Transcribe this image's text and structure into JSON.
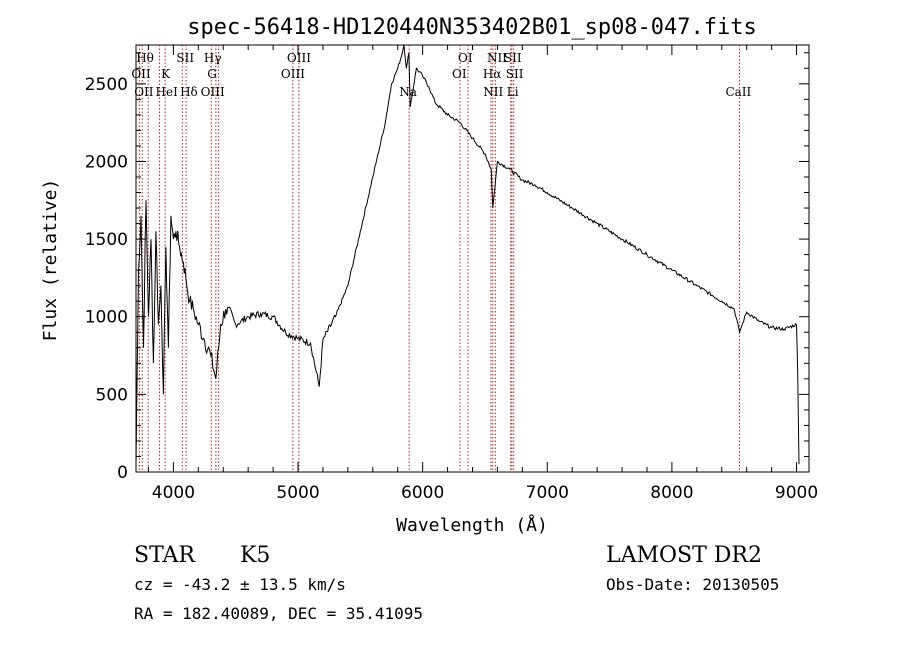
{
  "chart_data": {
    "type": "line",
    "title": "spec-56418-HD120440N353402B01_sp08-047.fits",
    "xlabel": "Wavelength (Å)",
    "ylabel": "Flux (relative)",
    "xlim": [
      3700,
      9100
    ],
    "ylim": [
      0,
      2750
    ],
    "xticks": [
      4000,
      5000,
      6000,
      7000,
      8000,
      9000
    ],
    "yticks": [
      0,
      500,
      1000,
      1500,
      2000,
      2500
    ],
    "grid": false,
    "series": [
      {
        "x": [
          3700,
          3720,
          3740,
          3760,
          3780,
          3800,
          3820,
          3840,
          3860,
          3880,
          3900,
          3920,
          3940,
          3960,
          3980,
          4000,
          4020,
          4050,
          4080,
          4100,
          4130,
          4160,
          4200,
          4250,
          4300,
          4340,
          4380,
          4420,
          4500,
          4600,
          4700,
          4800,
          4900,
          5000,
          5100,
          5170,
          5200,
          5300,
          5400,
          5500,
          5600,
          5700,
          5750,
          5800,
          5830,
          5850,
          5870,
          5890,
          5900,
          5950,
          6000,
          6050,
          6100,
          6200,
          6300,
          6400,
          6500,
          6550,
          6563,
          6600,
          6700,
          6800,
          6900,
          7000,
          7200,
          7400,
          7600,
          7800,
          8000,
          8200,
          8400,
          8500,
          8542,
          8600,
          8700,
          8800,
          8900,
          9000,
          9010,
          9020
        ],
        "y": [
          50,
          1300,
          1650,
          800,
          1750,
          1000,
          1500,
          700,
          1550,
          950,
          1200,
          500,
          1450,
          800,
          1650,
          1500,
          1550,
          1450,
          1350,
          1250,
          1100,
          1050,
          950,
          850,
          750,
          600,
          950,
          1050,
          950,
          1000,
          1020,
          1000,
          900,
          860,
          830,
          550,
          850,
          1000,
          1200,
          1550,
          1900,
          2250,
          2500,
          2600,
          2680,
          2750,
          2600,
          2700,
          2350,
          2600,
          2550,
          2480,
          2380,
          2300,
          2250,
          2150,
          2050,
          1950,
          1700,
          2000,
          1950,
          1880,
          1850,
          1800,
          1700,
          1600,
          1500,
          1400,
          1300,
          1200,
          1100,
          1050,
          900,
          1030,
          970,
          930,
          920,
          950,
          600,
          50
        ]
      }
    ],
    "lines": [
      {
        "x": 3727,
        "labels": [
          "OII"
        ]
      },
      {
        "x": 3750,
        "labels": [
          "OII"
        ]
      },
      {
        "x": 3798,
        "labels": [
          "Hθ"
        ]
      },
      {
        "x": 3889,
        "labels": [
          "HeI"
        ]
      },
      {
        "x": 3934,
        "labels": [
          "K"
        ]
      },
      {
        "x": 4072,
        "labels": [
          "SII"
        ]
      },
      {
        "x": 4102,
        "labels": [
          "Hδ"
        ]
      },
      {
        "x": 4304,
        "labels": [
          "G"
        ]
      },
      {
        "x": 4341,
        "labels": [
          "Hγ"
        ]
      },
      {
        "x": 4363,
        "labels": [
          "OIII"
        ]
      },
      {
        "x": 4959,
        "labels": [
          "OIII"
        ]
      },
      {
        "x": 5007,
        "labels": [
          "OIII"
        ]
      },
      {
        "x": 5892,
        "labels": [
          "Na"
        ]
      },
      {
        "x": 6300,
        "labels": [
          "OI"
        ]
      },
      {
        "x": 6364,
        "labels": [
          "OI"
        ]
      },
      {
        "x": 6548,
        "labels": [
          "NII"
        ]
      },
      {
        "x": 6563,
        "labels": [
          "Hα"
        ]
      },
      {
        "x": 6583,
        "labels": [
          "NII"
        ]
      },
      {
        "x": 6707,
        "labels": [
          "Li"
        ]
      },
      {
        "x": 6716,
        "labels": [
          "SII"
        ]
      },
      {
        "x": 6731,
        "labels": [
          "SII"
        ]
      },
      {
        "x": 8542,
        "labels": [
          "CaII"
        ]
      }
    ],
    "line_label_rows": [
      {
        "x": 3798,
        "row": 0,
        "text": "Hθ",
        "offset": -12
      },
      {
        "x": 3727,
        "row": 1,
        "text": "OII",
        "offset": -8
      },
      {
        "x": 3750,
        "row": 2,
        "text": "OII",
        "offset": -8
      },
      {
        "x": 3934,
        "row": 1,
        "text": "K",
        "offset": -4
      },
      {
        "x": 3889,
        "row": 2,
        "text": "HeI",
        "offset": -4
      },
      {
        "x": 4072,
        "row": 0,
        "text": "SII",
        "offset": -6
      },
      {
        "x": 4102,
        "row": 2,
        "text": "Hδ",
        "offset": -6
      },
      {
        "x": 4341,
        "row": 0,
        "text": "Hγ",
        "offset": -12
      },
      {
        "x": 4304,
        "row": 1,
        "text": "G",
        "offset": -4
      },
      {
        "x": 4363,
        "row": 2,
        "text": "OIII",
        "offset": -18
      },
      {
        "x": 4959,
        "row": 0,
        "text": "OIII",
        "offset": -6
      },
      {
        "x": 5007,
        "row": 1,
        "text": "OIII",
        "offset": -18
      },
      {
        "x": 5892,
        "row": 2,
        "text": "Na",
        "offset": -10
      },
      {
        "x": 6300,
        "row": 0,
        "text": "OI",
        "offset": -2
      },
      {
        "x": 6364,
        "row": 1,
        "text": "OI",
        "offset": -16
      },
      {
        "x": 6548,
        "row": 0,
        "text": "NII",
        "offset": -4
      },
      {
        "x": 6563,
        "row": 1,
        "text": "Hα",
        "offset": -10
      },
      {
        "x": 6583,
        "row": 2,
        "text": "NII",
        "offset": -12
      },
      {
        "x": 6716,
        "row": 0,
        "text": "SII",
        "offset": -8
      },
      {
        "x": 6731,
        "row": 1,
        "text": "SII",
        "offset": -8
      },
      {
        "x": 6707,
        "row": 2,
        "text": "Li",
        "offset": -4
      },
      {
        "x": 8542,
        "row": 2,
        "text": "CaII",
        "offset": -14
      }
    ],
    "line_color": "#b22222",
    "spectrum_color": "#000000"
  },
  "info": {
    "class": "STAR",
    "subclass": "K5",
    "survey": "LAMOST DR2",
    "cz": "cz = -43.2 ± 13.5 km/s",
    "obs_date": "Obs-Date: 20130505",
    "coords": "RA = 182.40089, DEC =  35.41095"
  }
}
